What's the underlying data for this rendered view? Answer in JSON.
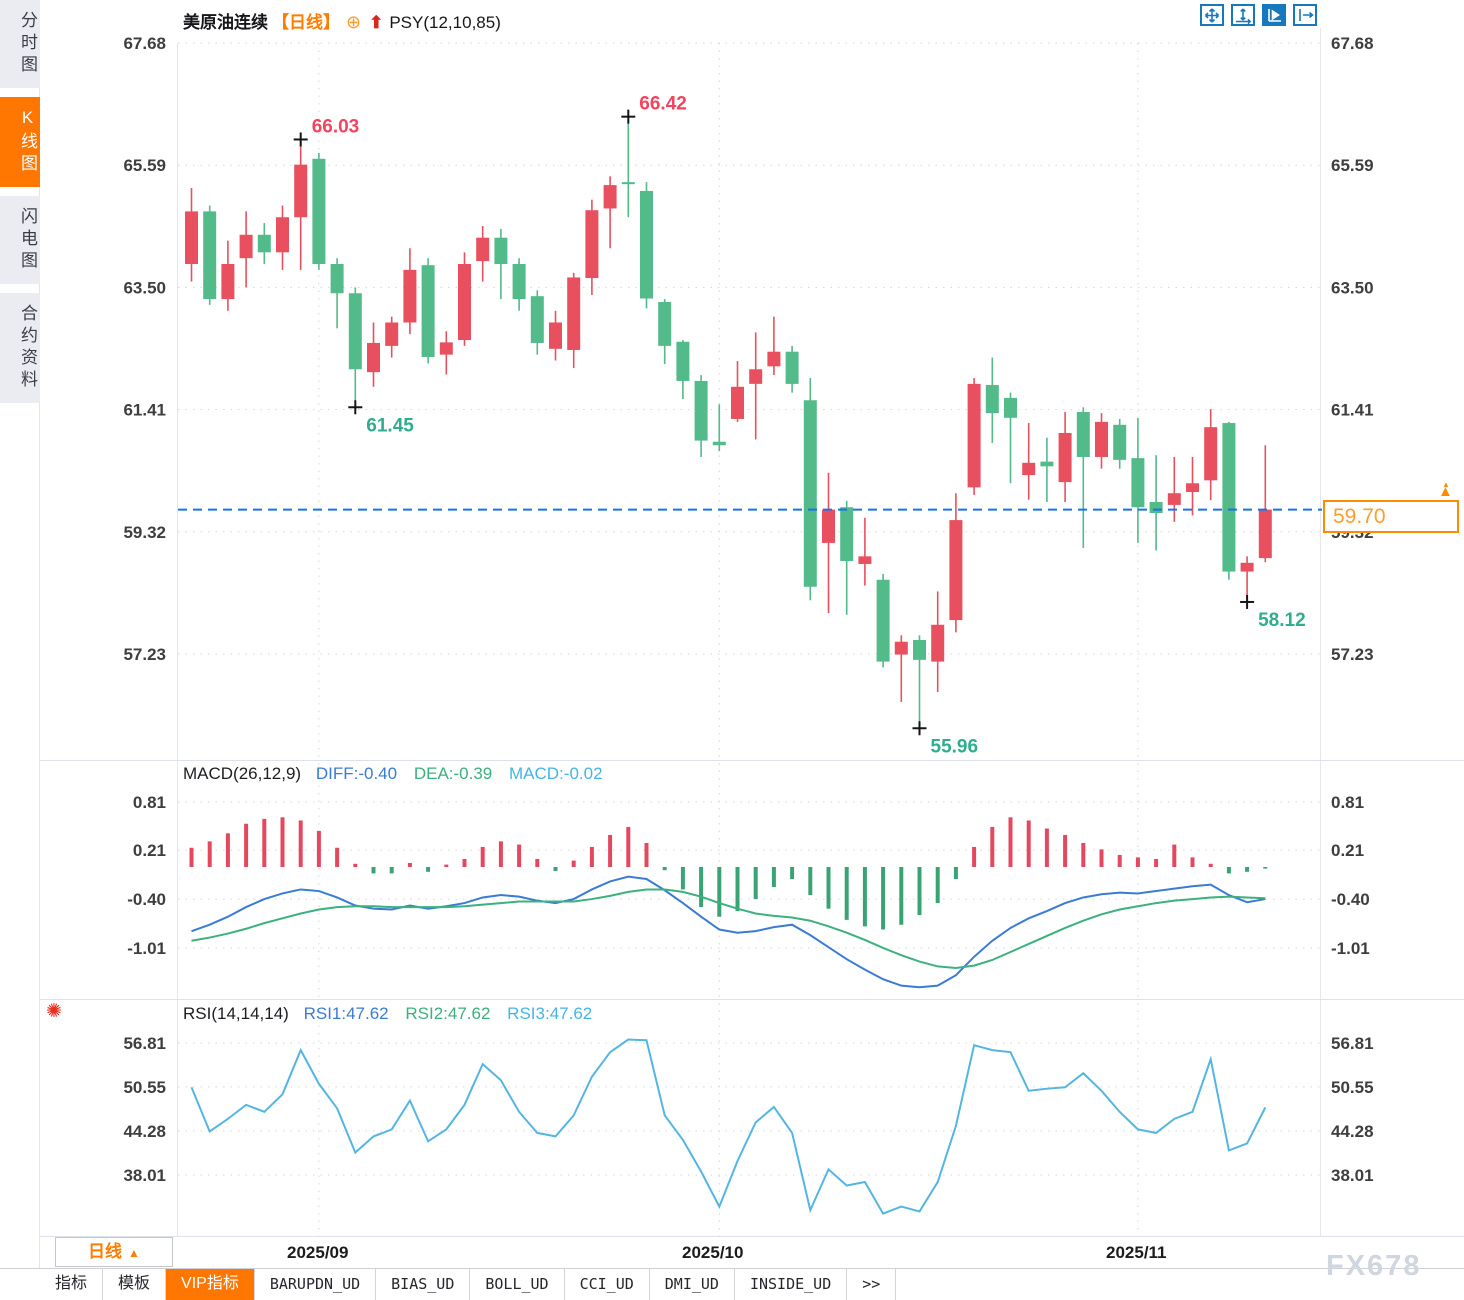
{
  "sidebar": {
    "items": [
      {
        "label": "分时图",
        "active": false
      },
      {
        "label": "K线图",
        "active": true
      },
      {
        "label": "闪电图",
        "active": false
      },
      {
        "label": "合约资料",
        "active": false
      }
    ]
  },
  "header": {
    "symbol": "美原油连续",
    "period_tag": "【日线】",
    "plus_icon": "⊕",
    "indicator": "PSY(12,10,85)"
  },
  "toolbar": {
    "icons": [
      {
        "name": "move-icon",
        "active": false
      },
      {
        "name": "y-axis-zoom-icon",
        "active": false
      },
      {
        "name": "auto-scale-icon",
        "active": true
      },
      {
        "name": "pan-right-icon",
        "active": false
      }
    ]
  },
  "price_tag": {
    "value": "59.70",
    "marker": "▲"
  },
  "period_selector": {
    "label": "日线",
    "arrow": "▲"
  },
  "bottom_tabs": {
    "items": [
      {
        "label": "指标",
        "active": false,
        "mono": false
      },
      {
        "label": "模板",
        "active": false,
        "mono": false
      },
      {
        "label": "VIP指标",
        "active": true,
        "mono": false
      },
      {
        "label": "BARUPDN_UD",
        "active": false,
        "mono": true
      },
      {
        "label": "BIAS_UD",
        "active": false,
        "mono": true
      },
      {
        "label": "BOLL_UD",
        "active": false,
        "mono": true
      },
      {
        "label": "CCI_UD",
        "active": false,
        "mono": true
      },
      {
        "label": "DMI_UD",
        "active": false,
        "mono": true
      },
      {
        "label": "INSIDE_UD",
        "active": false,
        "mono": true
      },
      {
        "label": ">>",
        "active": false,
        "mono": true
      }
    ]
  },
  "watermark": "FX678",
  "macd_header": {
    "name": "MACD(26,12,9)",
    "diff": "DIFF:-0.40",
    "dea": "DEA:-0.39",
    "macd": "MACD:-0.02"
  },
  "rsi_header": {
    "name": "RSI(14,14,14)",
    "rsi1": "RSI1:47.62",
    "rsi2": "RSI2:47.62",
    "rsi3": "RSI3:47.62"
  },
  "colors": {
    "up": "#e8505f",
    "down": "#53ba8a",
    "hist_up": "#e4485f",
    "hist_down": "#3aa374",
    "diff_line": "#3a7bd5",
    "dea_line": "#3cb07d",
    "rsi_line": "#55b5e2",
    "accent": "#ff7d00",
    "price_line": "#1a73e8",
    "annotation_high": "#f4435f",
    "annotation_low": "#2fae8f"
  },
  "chart_data": [
    {
      "type": "candlestick",
      "title": "美原油连续 日线",
      "y_ticks": [
        "67.68",
        "65.59",
        "63.50",
        "61.41",
        "59.32",
        "57.23"
      ],
      "ylim": [
        55.9,
        67.68
      ],
      "last_price": 59.7,
      "x_axis": {
        "labels": [
          "2025/09",
          "2025/10",
          "2025/11"
        ],
        "candle_index": [
          7,
          29,
          52
        ]
      },
      "annotations": [
        {
          "candle": 6,
          "price": 66.03,
          "text": "66.03",
          "type": "high"
        },
        {
          "candle": 9,
          "price": 61.45,
          "text": "61.45",
          "type": "low"
        },
        {
          "candle": 24,
          "price": 66.42,
          "text": "66.42",
          "type": "high"
        },
        {
          "candle": 40,
          "price": 55.96,
          "text": "55.96",
          "type": "low"
        },
        {
          "candle": 58,
          "price": 58.12,
          "text": "58.12",
          "type": "low"
        }
      ],
      "candles_ohlc": [
        [
          63.9,
          65.2,
          63.6,
          64.8
        ],
        [
          64.8,
          64.9,
          63.2,
          63.3
        ],
        [
          63.3,
          64.3,
          63.1,
          63.9
        ],
        [
          64.0,
          64.8,
          63.5,
          64.4
        ],
        [
          64.4,
          64.6,
          63.9,
          64.1
        ],
        [
          64.1,
          64.9,
          63.8,
          64.7
        ],
        [
          64.7,
          66.03,
          63.8,
          65.6
        ],
        [
          65.7,
          65.8,
          63.8,
          63.9
        ],
        [
          63.9,
          64.0,
          62.8,
          63.4
        ],
        [
          63.4,
          63.5,
          61.45,
          62.1
        ],
        [
          62.05,
          62.9,
          61.8,
          62.55
        ],
        [
          62.5,
          63.0,
          62.3,
          62.9
        ],
        [
          62.9,
          64.17,
          62.7,
          63.8
        ],
        [
          63.88,
          64.0,
          62.2,
          62.31
        ],
        [
          62.35,
          62.75,
          62.01,
          62.56
        ],
        [
          62.6,
          64.1,
          62.5,
          63.9
        ],
        [
          63.95,
          64.55,
          63.6,
          64.35
        ],
        [
          64.35,
          64.5,
          63.3,
          63.9
        ],
        [
          63.9,
          64.0,
          63.1,
          63.3
        ],
        [
          63.35,
          63.45,
          62.35,
          62.55
        ],
        [
          62.45,
          63.1,
          62.25,
          62.9
        ],
        [
          62.43,
          63.75,
          62.12,
          63.67
        ],
        [
          63.66,
          65.0,
          63.37,
          64.82
        ],
        [
          64.85,
          65.4,
          64.17,
          65.25
        ],
        [
          65.3,
          66.42,
          64.7,
          65.28
        ],
        [
          65.15,
          65.3,
          63.14,
          63.31
        ],
        [
          63.25,
          63.3,
          62.19,
          62.5
        ],
        [
          62.57,
          62.6,
          61.59,
          61.9
        ],
        [
          61.9,
          62.0,
          60.6,
          60.88
        ],
        [
          60.86,
          61.5,
          60.7,
          60.8
        ],
        [
          61.25,
          62.24,
          61.2,
          61.8
        ],
        [
          61.85,
          62.73,
          60.9,
          62.1
        ],
        [
          62.15,
          63.0,
          62.0,
          62.4
        ],
        [
          62.4,
          62.5,
          61.7,
          61.85
        ],
        [
          61.57,
          61.95,
          58.15,
          58.38
        ],
        [
          59.13,
          60.33,
          57.93,
          59.7
        ],
        [
          59.74,
          59.85,
          57.9,
          58.82
        ],
        [
          58.77,
          59.56,
          58.4,
          58.9
        ],
        [
          58.5,
          58.6,
          57.0,
          57.1
        ],
        [
          57.22,
          57.55,
          56.41,
          57.44
        ],
        [
          57.47,
          57.55,
          55.96,
          57.13
        ],
        [
          57.1,
          58.3,
          56.58,
          57.73
        ],
        [
          57.81,
          59.98,
          57.6,
          59.52
        ],
        [
          60.08,
          61.95,
          59.95,
          61.85
        ],
        [
          61.83,
          62.3,
          60.84,
          61.35
        ],
        [
          61.61,
          61.7,
          60.15,
          61.27
        ],
        [
          60.29,
          61.18,
          59.87,
          60.5
        ],
        [
          60.52,
          60.93,
          59.83,
          60.44
        ],
        [
          60.17,
          61.37,
          59.83,
          61.01
        ],
        [
          61.37,
          61.45,
          59.04,
          60.6
        ],
        [
          60.6,
          61.35,
          60.4,
          61.2
        ],
        [
          61.15,
          61.25,
          60.4,
          60.55
        ],
        [
          60.58,
          61.27,
          59.13,
          59.74
        ],
        [
          59.83,
          60.63,
          59.0,
          59.64
        ],
        [
          59.78,
          60.6,
          59.49,
          59.98
        ],
        [
          60.0,
          60.6,
          59.6,
          60.15
        ],
        [
          60.2,
          61.42,
          59.86,
          61.11
        ],
        [
          61.18,
          61.2,
          58.5,
          58.64
        ],
        [
          58.64,
          58.9,
          58.12,
          58.79
        ],
        [
          58.87,
          60.8,
          58.8,
          59.7
        ]
      ]
    },
    {
      "type": "macd",
      "params": "MACD(26,12,9)",
      "y_ticks": [
        "0.81",
        "0.21",
        "-0.40",
        "-1.01"
      ],
      "current": {
        "diff": -0.4,
        "dea": -0.39,
        "macd": -0.02
      },
      "diff": [
        -0.8,
        -0.72,
        -0.62,
        -0.5,
        -0.4,
        -0.33,
        -0.28,
        -0.3,
        -0.38,
        -0.48,
        -0.52,
        -0.53,
        -0.48,
        -0.52,
        -0.49,
        -0.45,
        -0.38,
        -0.35,
        -0.37,
        -0.42,
        -0.45,
        -0.4,
        -0.28,
        -0.18,
        -0.12,
        -0.15,
        -0.29,
        -0.45,
        -0.62,
        -0.78,
        -0.82,
        -0.8,
        -0.75,
        -0.72,
        -0.85,
        -1.0,
        -1.15,
        -1.28,
        -1.4,
        -1.48,
        -1.5,
        -1.48,
        -1.35,
        -1.12,
        -0.92,
        -0.76,
        -0.64,
        -0.55,
        -0.45,
        -0.38,
        -0.34,
        -0.32,
        -0.33,
        -0.3,
        -0.27,
        -0.24,
        -0.22,
        -0.35,
        -0.44,
        -0.4
      ],
      "dea": [
        -0.92,
        -0.88,
        -0.83,
        -0.77,
        -0.7,
        -0.64,
        -0.58,
        -0.53,
        -0.5,
        -0.49,
        -0.49,
        -0.5,
        -0.5,
        -0.5,
        -0.5,
        -0.49,
        -0.47,
        -0.45,
        -0.43,
        -0.43,
        -0.43,
        -0.43,
        -0.4,
        -0.36,
        -0.31,
        -0.28,
        -0.28,
        -0.31,
        -0.37,
        -0.45,
        -0.52,
        -0.58,
        -0.61,
        -0.63,
        -0.67,
        -0.74,
        -0.82,
        -0.91,
        -1.01,
        -1.1,
        -1.18,
        -1.24,
        -1.26,
        -1.23,
        -1.16,
        -1.06,
        -0.96,
        -0.86,
        -0.76,
        -0.67,
        -0.59,
        -0.53,
        -0.49,
        -0.45,
        -0.42,
        -0.4,
        -0.38,
        -0.37,
        -0.38,
        -0.39
      ],
      "hist": [
        0.24,
        0.32,
        0.42,
        0.54,
        0.6,
        0.62,
        0.58,
        0.45,
        0.24,
        0.04,
        -0.08,
        -0.08,
        0.05,
        -0.06,
        0.03,
        0.1,
        0.25,
        0.32,
        0.28,
        0.1,
        -0.05,
        0.08,
        0.25,
        0.4,
        0.5,
        0.3,
        -0.04,
        -0.28,
        -0.5,
        -0.62,
        -0.55,
        -0.4,
        -0.25,
        -0.15,
        -0.35,
        -0.52,
        -0.66,
        -0.74,
        -0.78,
        -0.72,
        -0.6,
        -0.45,
        -0.15,
        0.25,
        0.5,
        0.62,
        0.58,
        0.48,
        0.4,
        0.3,
        0.22,
        0.15,
        0.12,
        0.1,
        0.28,
        0.12,
        0.04,
        -0.08,
        -0.06,
        -0.02
      ]
    },
    {
      "type": "rsi",
      "params": "RSI(14,14,14)",
      "y_ticks": [
        "56.81",
        "50.55",
        "44.28",
        "38.01"
      ],
      "current": {
        "rsi1": 47.62,
        "rsi2": 47.62,
        "rsi3": 47.62
      },
      "values": [
        50.5,
        44.2,
        46.0,
        48.0,
        47.0,
        49.5,
        55.8,
        51.0,
        47.5,
        41.2,
        43.5,
        44.5,
        48.6,
        42.8,
        44.5,
        48.0,
        53.8,
        51.5,
        47.0,
        44.0,
        43.5,
        46.5,
        52.0,
        55.5,
        57.3,
        57.2,
        46.5,
        43.0,
        38.5,
        33.5,
        40.0,
        45.5,
        47.7,
        44.0,
        33.0,
        38.8,
        36.5,
        37.0,
        32.5,
        33.5,
        32.8,
        37.0,
        45.0,
        56.5,
        55.8,
        55.5,
        50.0,
        50.3,
        50.5,
        52.5,
        50.0,
        47.0,
        44.5,
        44.0,
        46.0,
        47.0,
        54.5,
        41.5,
        42.5,
        47.62
      ]
    }
  ]
}
